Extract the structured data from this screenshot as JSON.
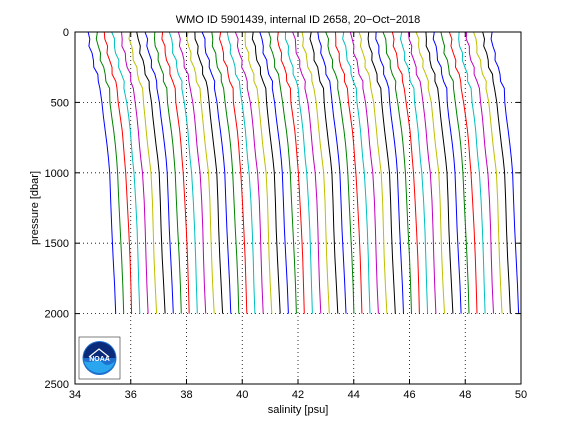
{
  "chart_data": {
    "type": "line",
    "title": "WMO ID 5901439, internal ID 2658, 20−Oct−2018",
    "xlabel": "salinity [psu]",
    "ylabel": "pressure [dbar]",
    "xlim": [
      34,
      50
    ],
    "ylim": [
      0,
      2500
    ],
    "y_reversed": true,
    "xticks": [
      34,
      36,
      38,
      40,
      42,
      44,
      46,
      48,
      50
    ],
    "yticks": [
      0,
      500,
      1000,
      1500,
      2000,
      2500
    ],
    "grid": "dotted",
    "legend": "none",
    "series_colors": [
      "#0000ff",
      "#008000",
      "#ff0000",
      "#00bfbf",
      "#bf00bf",
      "#bfbf00",
      "#000000"
    ],
    "pressure_levels": [
      0,
      50,
      100,
      150,
      200,
      250,
      300,
      350,
      400,
      500,
      600,
      700,
      800,
      900,
      1000,
      1200,
      1400,
      1600,
      1800,
      2000
    ],
    "profile_count": 50,
    "profile_start": 34.45,
    "profile_step": 0.295,
    "deep_offsets": [
      0.02,
      0.05,
      0.09,
      0.14,
      0.2,
      0.26,
      0.33,
      0.4,
      0.46,
      0.52,
      0.58,
      0.64,
      0.69,
      0.74,
      0.79,
      0.84,
      0.88,
      0.92,
      0.96,
      1.0
    ]
  },
  "logo": {
    "text": "NOAA",
    "name": "noaa-logo"
  }
}
